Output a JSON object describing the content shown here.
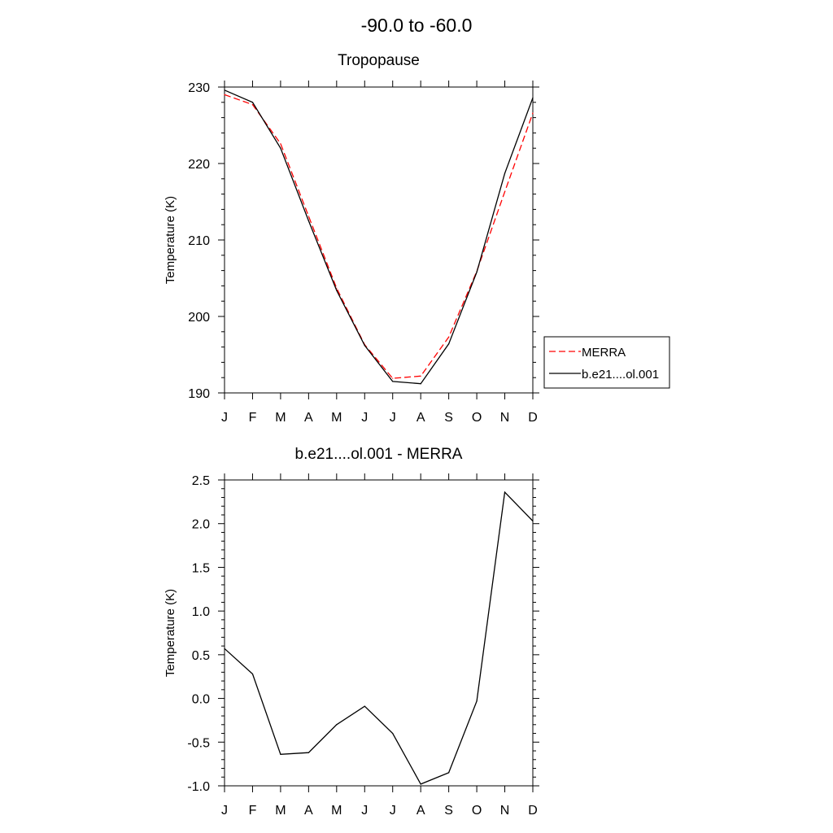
{
  "figure": {
    "title": "-90.0 to -60.0"
  },
  "chart_data": [
    {
      "type": "line",
      "title": "Tropopause",
      "xlabel": "",
      "ylabel": "Temperature (K)",
      "categories": [
        "J",
        "F",
        "M",
        "A",
        "M",
        "J",
        "J",
        "A",
        "S",
        "O",
        "N",
        "D"
      ],
      "ylim": [
        190,
        230
      ],
      "yticks": [
        190,
        200,
        210,
        220,
        230
      ],
      "ytick_labels": [
        "190",
        "200",
        "210",
        "220",
        "230"
      ],
      "grid": false,
      "legend": "right",
      "series": [
        {
          "name": "MERRA",
          "color": "#ff0000",
          "dash": "dashed",
          "values": [
            229.0,
            227.7,
            222.6,
            213.1,
            203.7,
            196.3,
            191.9,
            192.2,
            197.3,
            205.9,
            216.3,
            226.6
          ]
        },
        {
          "name": "b.e21....ol.001",
          "color": "#000000",
          "dash": "solid",
          "values": [
            229.6,
            228.0,
            222.0,
            212.5,
            203.4,
            196.2,
            191.5,
            191.2,
            196.4,
            205.8,
            218.7,
            228.6
          ]
        }
      ]
    },
    {
      "type": "line",
      "title": "b.e21....ol.001 - MERRA",
      "xlabel": "",
      "ylabel": "Temperature (K)",
      "categories": [
        "J",
        "F",
        "M",
        "A",
        "M",
        "J",
        "J",
        "A",
        "S",
        "O",
        "N",
        "D"
      ],
      "ylim": [
        -1.0,
        2.5
      ],
      "yticks": [
        -1.0,
        -0.5,
        0.0,
        0.5,
        1.0,
        1.5,
        2.0,
        2.5
      ],
      "ytick_labels": [
        "-1.0",
        "-0.5",
        "0.0",
        "0.5",
        "1.0",
        "1.5",
        "2.0",
        "2.5"
      ],
      "grid": false,
      "series": [
        {
          "color": "#000000",
          "dash": "solid",
          "values": [
            0.57,
            0.28,
            -0.64,
            -0.62,
            -0.3,
            -0.09,
            -0.4,
            -0.98,
            -0.85,
            -0.03,
            2.36,
            2.03
          ]
        }
      ]
    }
  ]
}
